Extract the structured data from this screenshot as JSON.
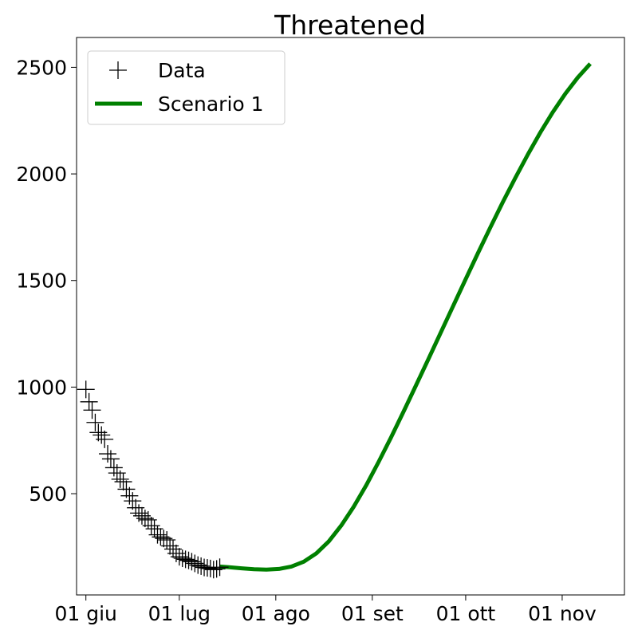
{
  "chart_data": {
    "type": "line",
    "title": "Threatened",
    "xlabel": "",
    "ylabel": "",
    "x_range": [
      "2020-05-29",
      "2020-11-21"
    ],
    "ylim": [
      25,
      2640
    ],
    "x_ticks": [
      {
        "date": "2020-06-01",
        "label": "01 giu"
      },
      {
        "date": "2020-07-01",
        "label": "01 lug"
      },
      {
        "date": "2020-08-01",
        "label": "01 ago"
      },
      {
        "date": "2020-09-01",
        "label": "01 set"
      },
      {
        "date": "2020-10-01",
        "label": "01 ott"
      },
      {
        "date": "2020-11-01",
        "label": "01 nov"
      }
    ],
    "y_ticks": [
      500,
      1000,
      1500,
      2000,
      2500
    ],
    "y_tick_labels": [
      "500",
      "1000",
      "1500",
      "2000",
      "2500"
    ],
    "grid": false,
    "legend_position": "top-left",
    "series": [
      {
        "name": "Data",
        "kind": "marker",
        "marker": "plus",
        "color": "#000000",
        "points": [
          [
            "2020-06-01",
            989
          ],
          [
            "2020-06-02",
            931
          ],
          [
            "2020-06-03",
            892
          ],
          [
            "2020-06-04",
            834
          ],
          [
            "2020-06-05",
            787
          ],
          [
            "2020-06-06",
            775
          ],
          [
            "2020-06-07",
            755
          ],
          [
            "2020-06-08",
            687
          ],
          [
            "2020-06-09",
            663
          ],
          [
            "2020-06-10",
            622
          ],
          [
            "2020-06-11",
            597
          ],
          [
            "2020-06-12",
            568
          ],
          [
            "2020-06-13",
            556
          ],
          [
            "2020-06-14",
            521
          ],
          [
            "2020-06-15",
            490
          ],
          [
            "2020-06-16",
            466
          ],
          [
            "2020-06-17",
            434
          ],
          [
            "2020-06-18",
            409
          ],
          [
            "2020-06-19",
            396
          ],
          [
            "2020-06-20",
            384
          ],
          [
            "2020-06-21",
            377
          ],
          [
            "2020-06-22",
            350
          ],
          [
            "2020-06-23",
            335
          ],
          [
            "2020-06-24",
            307
          ],
          [
            "2020-06-25",
            297
          ],
          [
            "2020-06-26",
            290
          ],
          [
            "2020-06-27",
            283
          ],
          [
            "2020-06-28",
            255
          ],
          [
            "2020-06-29",
            240
          ],
          [
            "2020-06-30",
            220
          ],
          [
            "2020-07-01",
            204
          ],
          [
            "2020-07-02",
            197
          ],
          [
            "2020-07-03",
            192
          ],
          [
            "2020-07-04",
            187
          ],
          [
            "2020-07-05",
            181
          ],
          [
            "2020-07-06",
            173
          ],
          [
            "2020-07-07",
            165
          ],
          [
            "2020-07-08",
            160
          ],
          [
            "2020-07-09",
            154
          ],
          [
            "2020-07-10",
            152
          ],
          [
            "2020-07-11",
            149
          ],
          [
            "2020-07-12",
            144
          ],
          [
            "2020-07-13",
            147
          ],
          [
            "2020-07-14",
            155
          ]
        ]
      },
      {
        "name": "Scenario 1",
        "kind": "line",
        "color": "#008000",
        "points": [
          [
            "2020-07-14",
            158
          ],
          [
            "2020-07-17",
            155
          ],
          [
            "2020-07-21",
            150
          ],
          [
            "2020-07-25",
            146
          ],
          [
            "2020-07-29",
            144
          ],
          [
            "2020-08-02",
            147
          ],
          [
            "2020-08-06",
            158
          ],
          [
            "2020-08-10",
            181
          ],
          [
            "2020-08-14",
            220
          ],
          [
            "2020-08-18",
            276
          ],
          [
            "2020-08-22",
            350
          ],
          [
            "2020-08-26",
            438
          ],
          [
            "2020-08-30",
            538
          ],
          [
            "2020-09-03",
            648
          ],
          [
            "2020-09-07",
            763
          ],
          [
            "2020-09-11",
            884
          ],
          [
            "2020-09-15",
            1007
          ],
          [
            "2020-09-19",
            1131
          ],
          [
            "2020-09-23",
            1256
          ],
          [
            "2020-09-27",
            1381
          ],
          [
            "2020-10-01",
            1506
          ],
          [
            "2020-10-05",
            1630
          ],
          [
            "2020-10-09",
            1752
          ],
          [
            "2020-10-13",
            1870
          ],
          [
            "2020-10-17",
            1983
          ],
          [
            "2020-10-21",
            2092
          ],
          [
            "2020-10-25",
            2195
          ],
          [
            "2020-10-29",
            2290
          ],
          [
            "2020-11-02",
            2376
          ],
          [
            "2020-11-06",
            2452
          ],
          [
            "2020-11-10",
            2517
          ]
        ]
      }
    ]
  }
}
